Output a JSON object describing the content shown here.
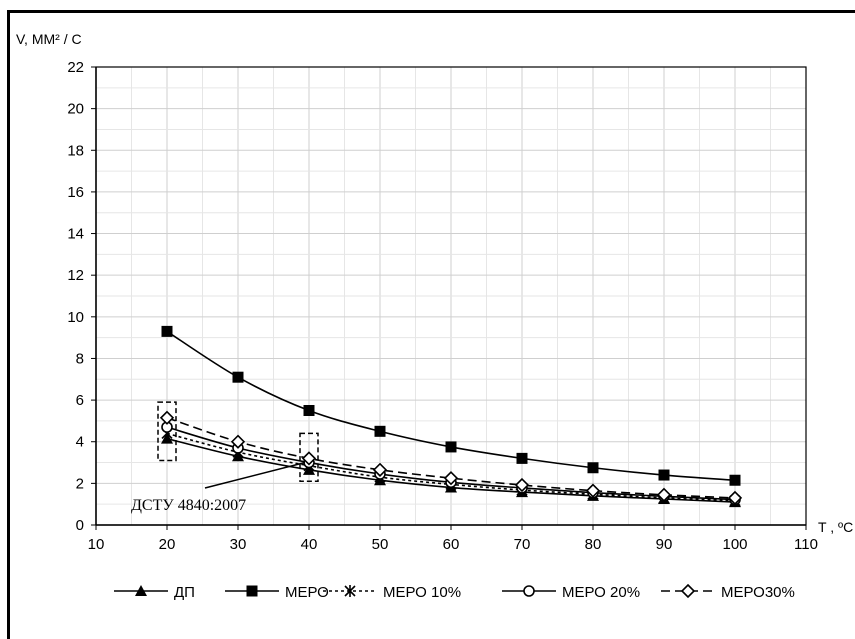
{
  "chart_data": {
    "type": "line",
    "ylabel": "V, ММ² / С",
    "xlabel": "T , ºC",
    "xlim": [
      10,
      110
    ],
    "ylim": [
      0,
      22
    ],
    "x_ticks": [
      10,
      20,
      30,
      40,
      50,
      60,
      70,
      80,
      90,
      100,
      110
    ],
    "y_ticks": [
      0,
      2,
      4,
      6,
      8,
      10,
      12,
      14,
      16,
      18,
      20,
      22
    ],
    "grid": true,
    "legend_position": "bottom",
    "x": [
      20,
      30,
      40,
      50,
      60,
      70,
      80,
      90,
      100
    ],
    "series": [
      {
        "name": "ДП",
        "values": [
          4.15,
          3.3,
          2.65,
          2.15,
          1.8,
          1.58,
          1.4,
          1.25,
          1.1
        ],
        "marker": "triangle",
        "dash": "solid"
      },
      {
        "name": "МЕРО",
        "values": [
          9.3,
          7.1,
          5.5,
          4.5,
          3.75,
          3.2,
          2.75,
          2.4,
          2.15
        ],
        "marker": "square",
        "dash": "solid"
      },
      {
        "name": "МЕРО 10%",
        "values": [
          4.4,
          3.5,
          2.85,
          2.3,
          1.95,
          1.68,
          1.48,
          1.3,
          1.17
        ],
        "marker": "asterisk",
        "dash": "dotted"
      },
      {
        "name": "МЕРО 20%",
        "values": [
          4.7,
          3.7,
          3.0,
          2.45,
          2.05,
          1.78,
          1.55,
          1.38,
          1.22
        ],
        "marker": "circle",
        "dash": "solid"
      },
      {
        "name": "МЕРО30%",
        "values": [
          5.15,
          4.0,
          3.2,
          2.65,
          2.25,
          1.92,
          1.65,
          1.45,
          1.3
        ],
        "marker": "diamond",
        "dash": "dashed"
      }
    ],
    "annotations": [
      {
        "text": "ДСТУ 4840:2007",
        "highlight_ranges": [
          {
            "x": 20,
            "y": [
              3.1,
              5.9
            ]
          },
          {
            "x": 40,
            "y": [
              2.1,
              4.4
            ]
          }
        ],
        "points_to": {
          "x": 40,
          "y": 3.1
        }
      }
    ]
  }
}
